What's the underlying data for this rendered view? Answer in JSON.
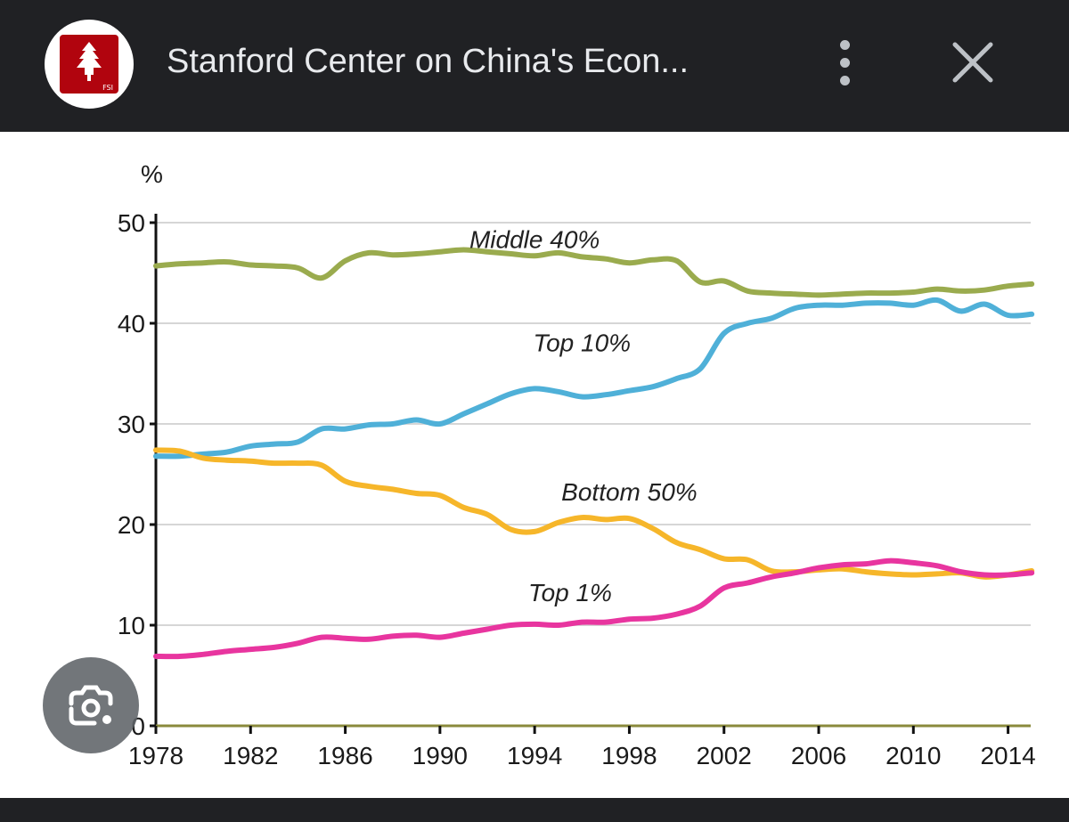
{
  "header": {
    "site_title": "Stanford Center on China's Econ...",
    "logo_text": "FSI"
  },
  "colors": {
    "middle40": "#9aab4e",
    "top10": "#4fb0d8",
    "bottom50": "#f6b62a",
    "top1": "#e8359f",
    "grid": "#d6d6d6",
    "axis": "#111111",
    "baseline": "#8a8a3c"
  },
  "chart_data": {
    "type": "line",
    "title": "",
    "xlabel": "",
    "ylabel": "%",
    "xlim": [
      1978,
      2015
    ],
    "ylim": [
      0,
      50
    ],
    "x_ticks": [
      "1978",
      "1982",
      "1986",
      "1990",
      "1994",
      "1998",
      "2002",
      "2006",
      "2010",
      "2014"
    ],
    "y_ticks": [
      "50",
      "40",
      "30",
      "20",
      "10",
      "0"
    ],
    "x": [
      1978,
      1979,
      1980,
      1981,
      1982,
      1983,
      1984,
      1985,
      1986,
      1987,
      1988,
      1989,
      1990,
      1991,
      1992,
      1993,
      1994,
      1995,
      1996,
      1997,
      1998,
      1999,
      2000,
      2001,
      2002,
      2003,
      2004,
      2005,
      2006,
      2007,
      2008,
      2009,
      2010,
      2011,
      2012,
      2013,
      2014,
      2015
    ],
    "series": [
      {
        "name": "Middle 40%",
        "label": "Middle 40%",
        "color_key": "middle40",
        "values": [
          45.7,
          45.9,
          46.0,
          46.1,
          45.8,
          45.7,
          45.5,
          44.5,
          46.2,
          47.0,
          46.8,
          46.9,
          47.1,
          47.3,
          47.1,
          46.9,
          46.7,
          47.0,
          46.6,
          46.4,
          46.0,
          46.3,
          46.2,
          44.1,
          44.2,
          43.2,
          43.0,
          42.9,
          42.8,
          42.9,
          43.0,
          43.0,
          43.1,
          43.4,
          43.2,
          43.3,
          43.7,
          43.9
        ]
      },
      {
        "name": "Top 10%",
        "label": "Top 10%",
        "color_key": "top10",
        "values": [
          26.8,
          26.8,
          27.0,
          27.2,
          27.8,
          28.0,
          28.2,
          29.5,
          29.5,
          29.9,
          30.0,
          30.4,
          30.0,
          31.0,
          32.0,
          33.0,
          33.5,
          33.2,
          32.7,
          32.9,
          33.3,
          33.7,
          34.5,
          35.5,
          39.0,
          40.0,
          40.5,
          41.5,
          41.8,
          41.8,
          42.0,
          42.0,
          41.8,
          42.3,
          41.2,
          41.9,
          40.8,
          40.9
        ]
      },
      {
        "name": "Bottom 50%",
        "label": "Bottom 50%",
        "color_key": "bottom50",
        "values": [
          27.4,
          27.3,
          26.6,
          26.4,
          26.3,
          26.1,
          26.1,
          25.9,
          24.3,
          23.8,
          23.5,
          23.1,
          22.9,
          21.7,
          21.0,
          19.5,
          19.3,
          20.2,
          20.7,
          20.5,
          20.6,
          19.6,
          18.2,
          17.5,
          16.6,
          16.5,
          15.4,
          15.3,
          15.5,
          15.6,
          15.3,
          15.1,
          15.0,
          15.1,
          15.2,
          14.8,
          15.0,
          15.4
        ]
      },
      {
        "name": "Top 1%",
        "label": "Top 1%",
        "color_key": "top1",
        "values": [
          6.9,
          6.9,
          7.1,
          7.4,
          7.6,
          7.8,
          8.2,
          8.8,
          8.7,
          8.6,
          8.9,
          9.0,
          8.8,
          9.2,
          9.6,
          10.0,
          10.1,
          10.0,
          10.3,
          10.3,
          10.6,
          10.7,
          11.1,
          11.9,
          13.7,
          14.2,
          14.8,
          15.2,
          15.7,
          16.0,
          16.1,
          16.4,
          16.2,
          15.9,
          15.3,
          15.0,
          15.0,
          15.2
        ]
      }
    ],
    "legend": "inline labels"
  }
}
